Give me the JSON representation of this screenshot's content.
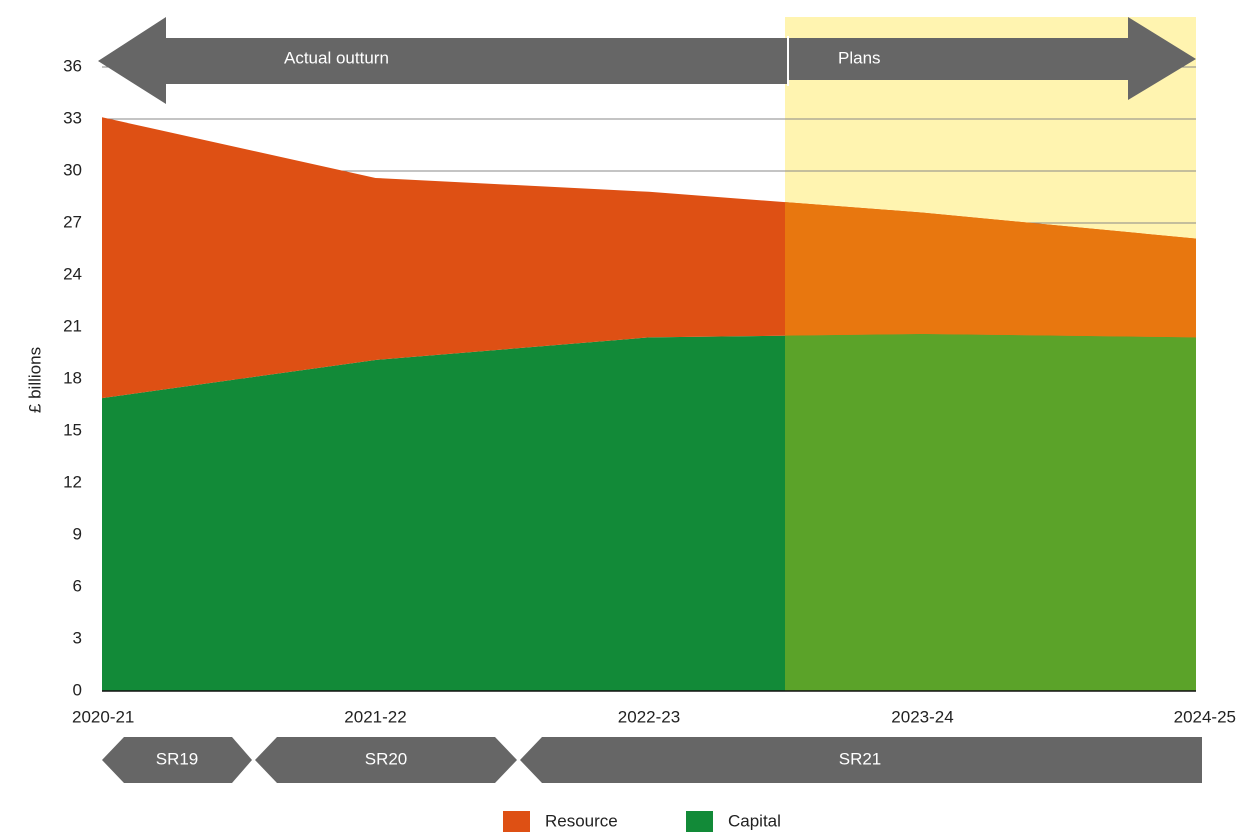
{
  "chart_data": {
    "type": "area",
    "stacked": true,
    "y_label": "£ billions",
    "categories": [
      "2020-21",
      "2021-22",
      "2022-23",
      "2023-24",
      "2024-25"
    ],
    "series": [
      {
        "name": "Resource",
        "color": "#de5014",
        "plan_color": "#e8770f",
        "values": [
          16.2,
          10.5,
          8.4,
          7.0,
          5.7
        ]
      },
      {
        "name": "Capital",
        "color": "#128a38",
        "plan_color": "#5ba329",
        "values": [
          16.9,
          19.1,
          20.4,
          20.6,
          20.4
        ]
      }
    ],
    "ylim": [
      0,
      37.5
    ],
    "yticks": [
      0,
      3,
      6,
      9,
      12,
      15,
      18,
      21,
      24,
      27,
      30,
      33,
      36
    ],
    "grid": true,
    "plans_color": "#fff4b0",
    "periods": [
      "Actual outturn",
      "Plans"
    ],
    "spending_reviews": [
      "SR19",
      "SR20",
      "SR21"
    ]
  }
}
